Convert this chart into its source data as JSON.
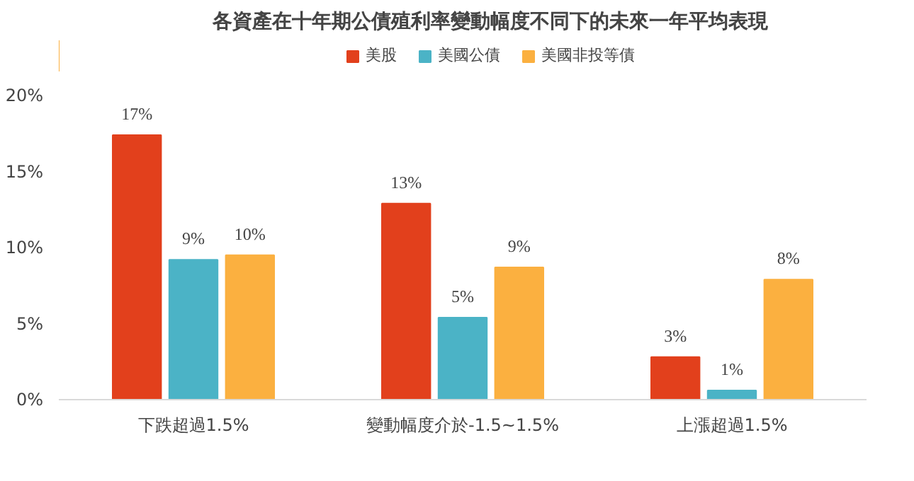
{
  "chart_data": {
    "type": "bar",
    "title": "各資產在十年期公債殖利率變動幅度不同下的未來一年平均表現",
    "categories": [
      "下跌超過1.5%",
      "變動幅度介於-1.5~1.5%",
      "上漲超過1.5%"
    ],
    "series": [
      {
        "name": "美股",
        "color": "#e2401c",
        "values": [
          17.4,
          12.9,
          2.8
        ],
        "value_labels": [
          "17%",
          "13%",
          "3%"
        ]
      },
      {
        "name": "美國公債",
        "color": "#4bb3c6",
        "values": [
          9.2,
          5.4,
          0.6
        ],
        "value_labels": [
          "9%",
          "5%",
          "1%"
        ]
      },
      {
        "name": "美國非投等債",
        "color": "#fbb040",
        "values": [
          9.5,
          8.7,
          7.9
        ],
        "value_labels": [
          "10%",
          "9%",
          "8%"
        ]
      }
    ],
    "ylim": [
      0,
      20
    ],
    "yticks": [
      {
        "value": 0,
        "label": "0%"
      },
      {
        "value": 5,
        "label": "5%"
      },
      {
        "value": 10,
        "label": "10%"
      },
      {
        "value": 15,
        "label": "15%"
      },
      {
        "value": 20,
        "label": "20%"
      }
    ],
    "grid": false,
    "legend": "top"
  }
}
